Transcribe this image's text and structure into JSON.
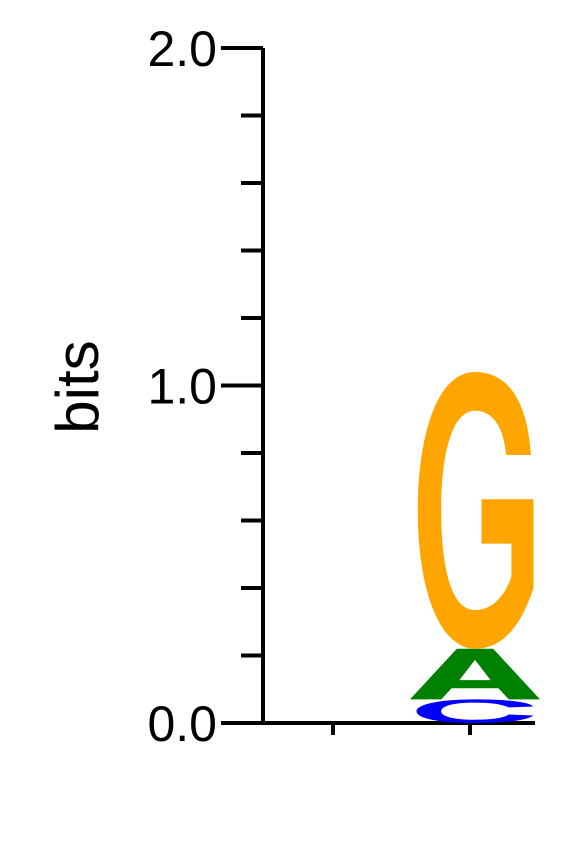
{
  "chart_data": {
    "type": "sequence-logo",
    "title": "",
    "xlabel": "",
    "ylabel": "bits",
    "ylim": [
      0,
      2.0
    ],
    "y_tick_labels": [
      "0.0",
      "1.0",
      "2.0"
    ],
    "y_major_ticks": [
      0,
      1.0,
      2.0
    ],
    "y_minor_step": 0.2,
    "grid": false,
    "positions": [
      {
        "index": 1,
        "letters": []
      },
      {
        "index": 2,
        "letters": [
          {
            "letter": "C",
            "bits": 0.07,
            "color": "#0000FF"
          },
          {
            "letter": "A",
            "bits": 0.15,
            "color": "#008000"
          },
          {
            "letter": "G",
            "bits": 0.82,
            "color": "#FFA500"
          }
        ]
      }
    ],
    "colors": {
      "A": "#008000",
      "C": "#0000FF",
      "G": "#FFA500",
      "T": "#FF0000",
      "axis": "#000000"
    }
  }
}
